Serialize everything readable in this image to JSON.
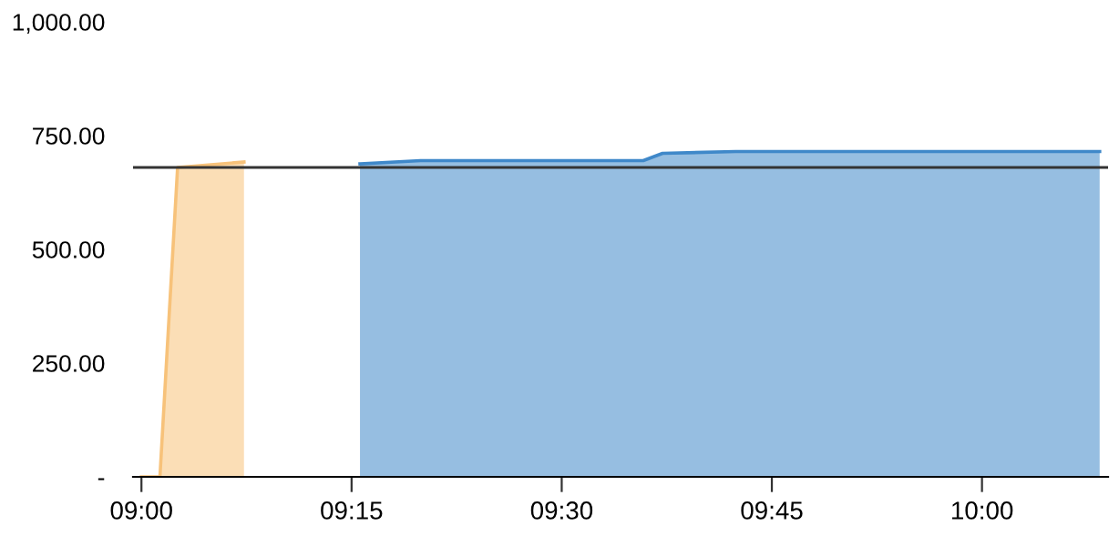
{
  "chart_data": {
    "type": "area",
    "xlim": [
      8.99,
      10.15
    ],
    "xticks": [
      {
        "value": 9,
        "label": "09:00"
      },
      {
        "value": 9.25,
        "label": "09:15"
      },
      {
        "value": 9.5,
        "label": "09:30"
      },
      {
        "value": 9.75,
        "label": "09:45"
      },
      {
        "value": 10,
        "label": "10:00"
      }
    ],
    "ylim": [
      0,
      1000
    ],
    "yticks": [
      {
        "value": 0,
        "label": "-"
      },
      {
        "value": 250,
        "label": "250.00"
      },
      {
        "value": 500,
        "label": "500.00"
      },
      {
        "value": 750,
        "label": "750.00"
      },
      {
        "value": 1000,
        "label": "1,000.00"
      }
    ],
    "series": [
      {
        "color": "#f7c27a",
        "x": [
          9.0,
          9.022,
          9.043,
          9.122
        ],
        "values": [
          0,
          0,
          680,
          692
        ]
      },
      {
        "color": "#3f88c9",
        "x": [
          9.26,
          9.332,
          9.597,
          9.62,
          9.707,
          10.14
        ],
        "values": [
          688,
          695,
          695,
          711,
          715,
          715
        ]
      }
    ],
    "ref_lines": [
      {
        "axis": "y",
        "value": 680,
        "color": "#333333"
      }
    ],
    "grid": false,
    "legend": false
  }
}
